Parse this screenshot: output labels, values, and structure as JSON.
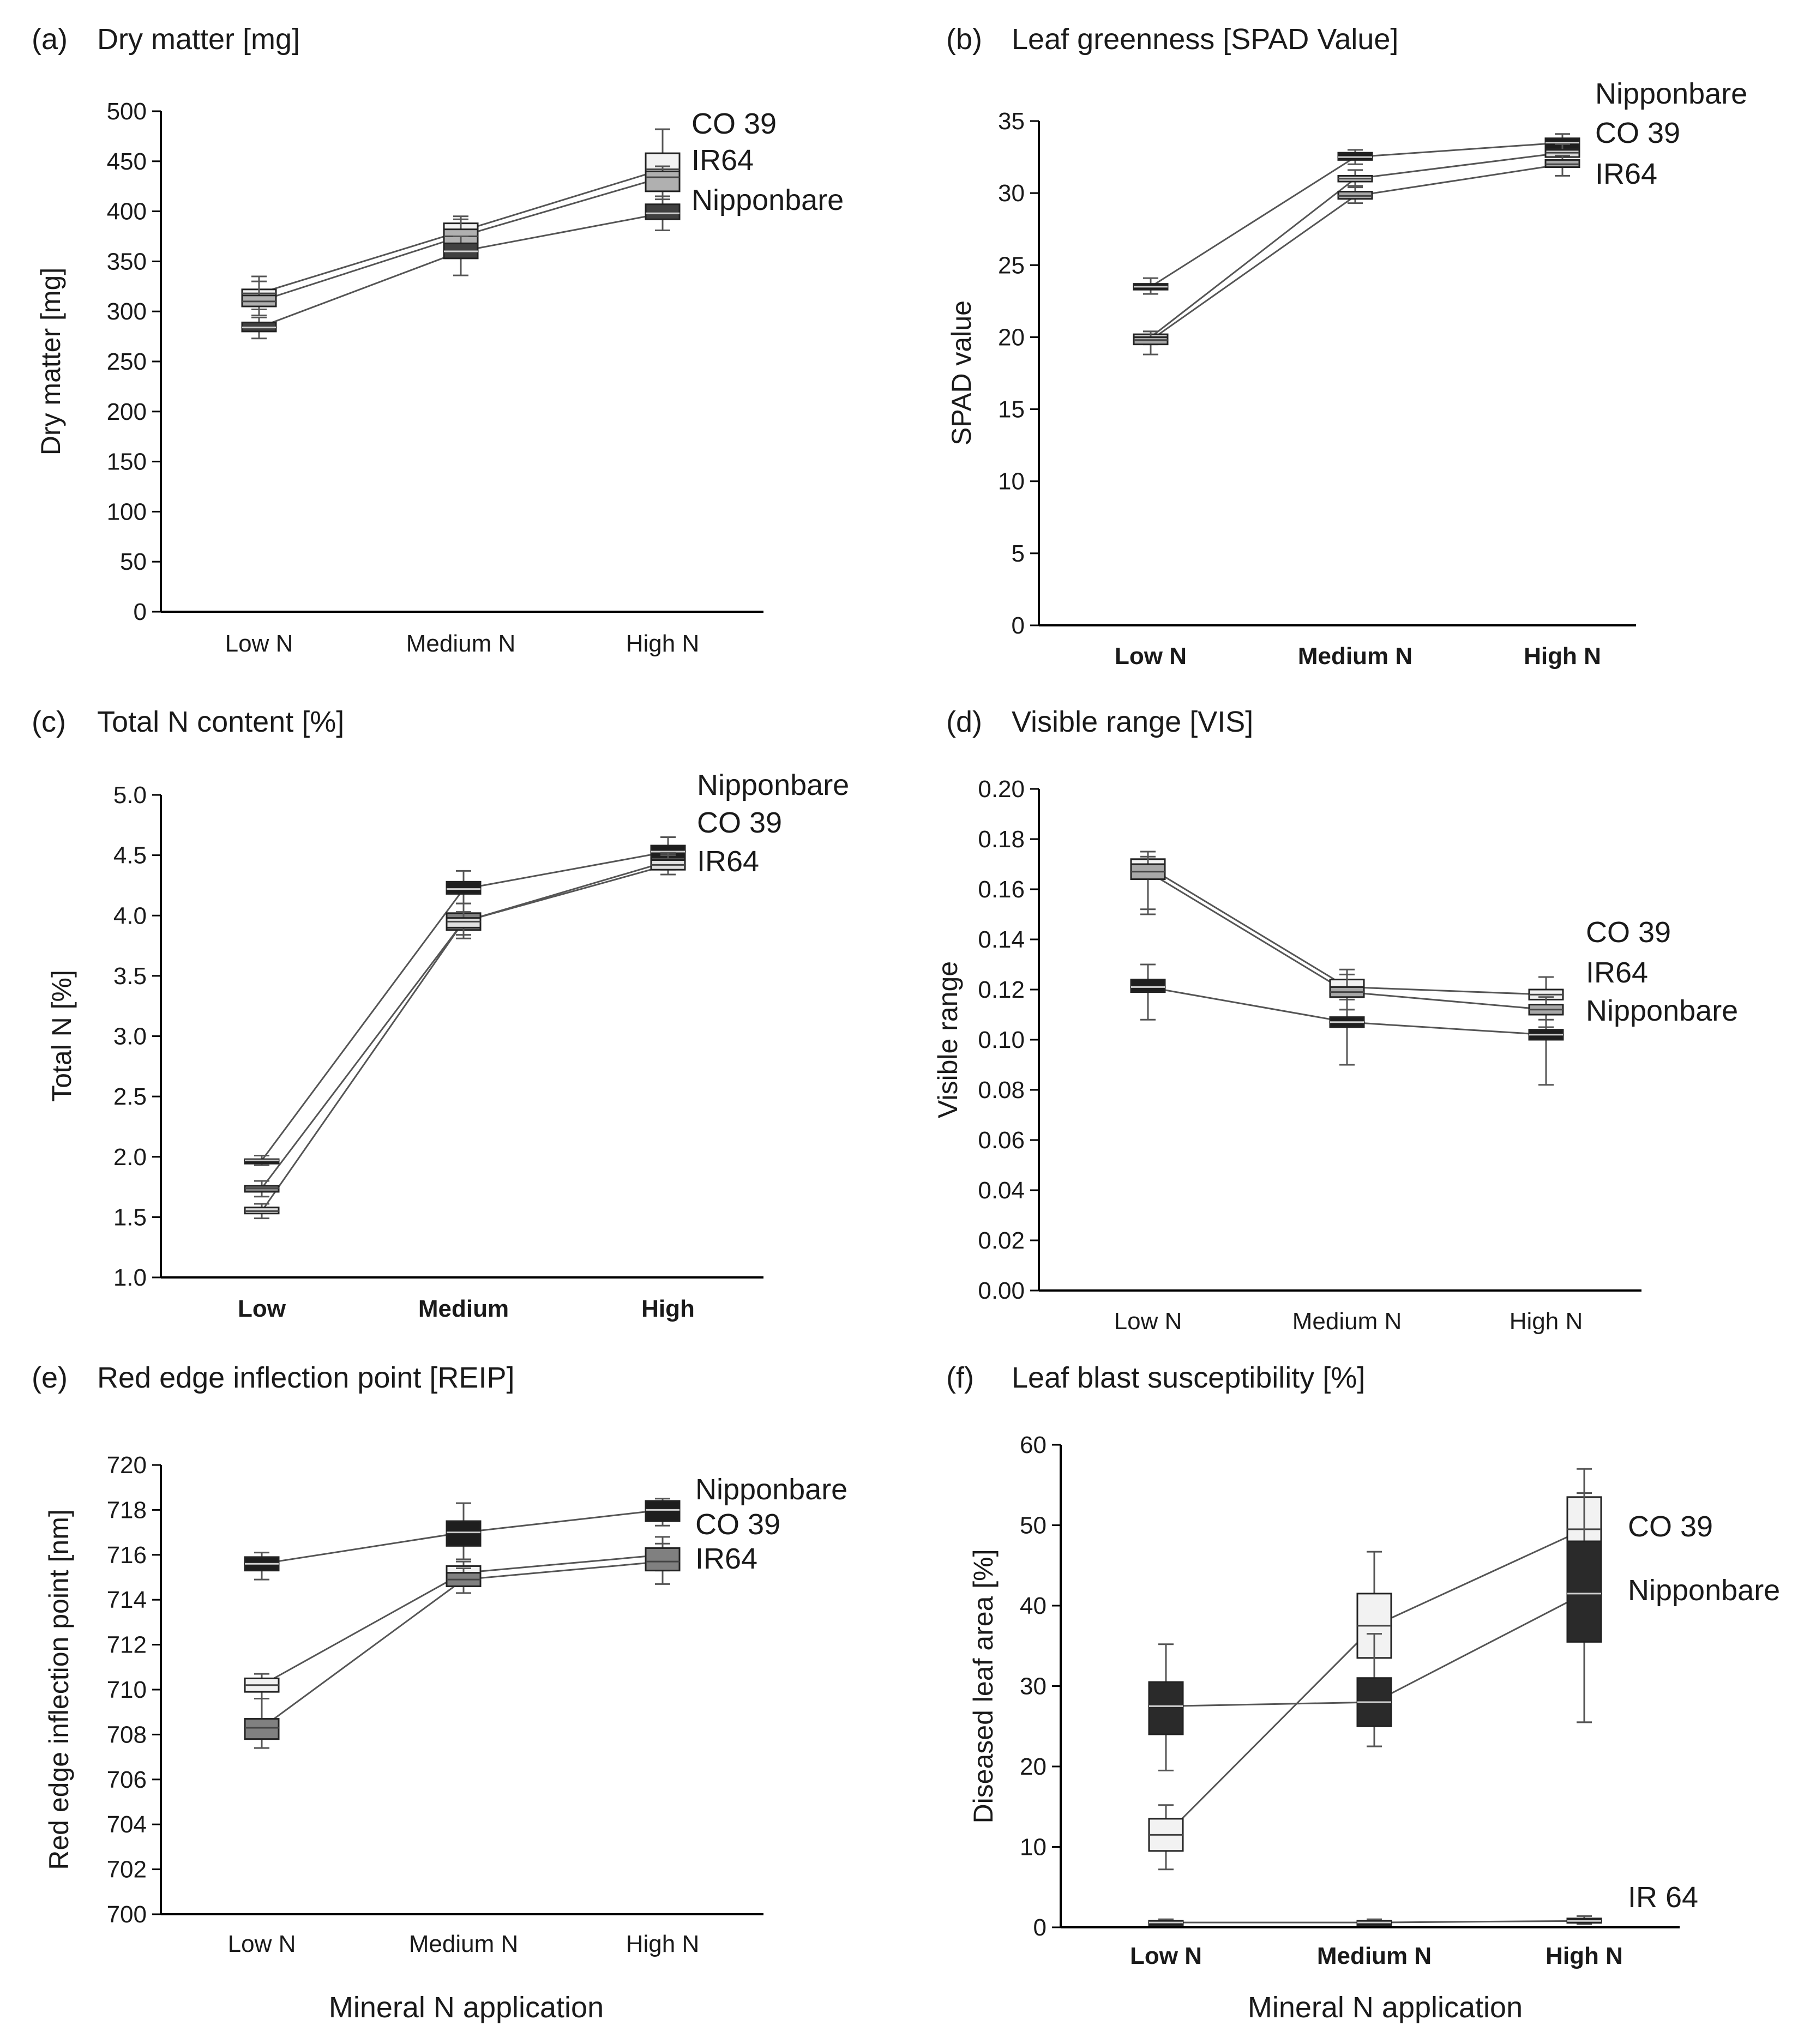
{
  "figure": {
    "x_axis_title": "Mineral N application"
  },
  "chart_data": [
    {
      "type": "box",
      "panel": "(a)",
      "title": "Dry matter [mg]",
      "ylabel": "Dry matter [mg]",
      "ylim": [
        0,
        500
      ],
      "yticks": [
        0,
        50,
        100,
        150,
        200,
        250,
        300,
        350,
        400,
        450,
        500
      ],
      "ytick_labels": [
        "0",
        "50",
        "100",
        "150",
        "200",
        "250",
        "300",
        "350",
        "400",
        "450",
        "500"
      ],
      "categories": [
        "Low N",
        "Medium N",
        "High N"
      ],
      "bold_categories": false,
      "series": [
        {
          "name": "CO 39",
          "color": "#f2f2f2",
          "box": [
            [
              310,
              322
            ],
            [
              370,
              388
            ],
            [
              425,
              458
            ]
          ],
          "median": [
            318,
            380,
            442
          ],
          "whisker": [
            [
              302,
              335
            ],
            [
              362,
              395
            ],
            [
              415,
              482
            ]
          ]
        },
        {
          "name": "IR64",
          "color": "#b0b0b0",
          "box": [
            [
              305,
              316
            ],
            [
              366,
              382
            ],
            [
              420,
              440
            ]
          ],
          "median": [
            310,
            375,
            434
          ],
          "whisker": [
            [
              296,
              330
            ],
            [
              355,
              392
            ],
            [
              412,
              445
            ]
          ]
        },
        {
          "name": "Nipponbare",
          "color": "#404040",
          "box": [
            [
              280,
              289
            ],
            [
              353,
              368
            ],
            [
              392,
              407
            ]
          ],
          "median": [
            284,
            360,
            398
          ],
          "whisker": [
            [
              273,
              294
            ],
            [
              336,
              375
            ],
            [
              381,
              415
            ]
          ]
        }
      ],
      "labels": [
        "CO 39",
        "IR64",
        "Nipponbare"
      ]
    },
    {
      "type": "box",
      "panel": "(b)",
      "title": "Leaf greenness [SPAD Value]",
      "ylabel": "SPAD value",
      "ylim": [
        0,
        35
      ],
      "yticks": [
        0,
        5,
        10,
        15,
        20,
        25,
        30,
        35
      ],
      "ytick_labels": [
        "0",
        "5",
        "10",
        "15",
        "20",
        "25",
        "30",
        "35"
      ],
      "categories": [
        "Low N",
        "Medium N",
        "High N"
      ],
      "bold_categories": true,
      "series": [
        {
          "name": "Nipponbare",
          "color": "#1e1e1e",
          "box": [
            [
              23.3,
              23.7
            ],
            [
              32.3,
              32.8
            ],
            [
              33.1,
              33.8
            ]
          ],
          "median": [
            23.5,
            32.5,
            33.5
          ],
          "whisker": [
            [
              23.0,
              24.1
            ],
            [
              32.0,
              33.0
            ],
            [
              32.8,
              34.1
            ]
          ]
        },
        {
          "name": "CO 39",
          "color": "#d9d9d9",
          "box": [
            [
              19.8,
              20.2
            ],
            [
              30.8,
              31.2
            ],
            [
              32.5,
              33.0
            ]
          ],
          "median": [
            20.0,
            31.0,
            32.8
          ],
          "whisker": [
            [
              19.5,
              20.4
            ],
            [
              30.5,
              31.6
            ],
            [
              32.2,
              33.4
            ]
          ]
        },
        {
          "name": "IR64",
          "color": "#a8a8a8",
          "box": [
            [
              19.5,
              20.0
            ],
            [
              29.6,
              30.1
            ],
            [
              31.8,
              32.3
            ]
          ],
          "median": [
            19.8,
            29.8,
            32.0
          ],
          "whisker": [
            [
              18.8,
              20.4
            ],
            [
              29.3,
              30.4
            ],
            [
              31.2,
              32.6
            ]
          ]
        }
      ],
      "labels": [
        "Nipponbare",
        "CO 39",
        "IR64"
      ]
    },
    {
      "type": "box",
      "panel": "(c)",
      "title": "Total N content [%]",
      "ylabel": "Total N [%]",
      "ylim": [
        1.0,
        5.0
      ],
      "yticks": [
        1.0,
        1.5,
        2.0,
        2.5,
        3.0,
        3.5,
        4.0,
        4.5,
        5.0
      ],
      "ytick_labels": [
        "1.0",
        "1.5",
        "2.0",
        "2.5",
        "3.0",
        "3.5",
        "4.0",
        "4.5",
        "5.0"
      ],
      "categories": [
        "Low",
        "Medium",
        "High"
      ],
      "bold_categories": true,
      "series": [
        {
          "name": "Nipponbare",
          "color": "#1e1e1e",
          "box": [
            [
              1.95,
              1.98
            ],
            [
              4.18,
              4.28
            ],
            [
              4.48,
              4.58
            ]
          ],
          "median": [
            1.97,
            4.22,
            4.53
          ],
          "whisker": [
            [
              1.93,
              2.01
            ],
            [
              4.1,
              4.37
            ],
            [
              4.43,
              4.65
            ]
          ]
        },
        {
          "name": "CO 39",
          "color": "#808080",
          "box": [
            [
              1.71,
              1.76
            ],
            [
              3.88,
              4.02
            ],
            [
              4.42,
              4.48
            ]
          ],
          "median": [
            1.74,
            3.95,
            4.45
          ],
          "whisker": [
            [
              1.67,
              1.8
            ],
            [
              3.81,
              4.1
            ],
            [
              4.38,
              4.52
            ]
          ]
        },
        {
          "name": "IR64",
          "color": "#e0e0e0",
          "box": [
            [
              1.53,
              1.58
            ],
            [
              3.9,
              3.98
            ],
            [
              4.38,
              4.46
            ]
          ],
          "median": [
            1.55,
            3.95,
            4.42
          ],
          "whisker": [
            [
              1.49,
              1.61
            ],
            [
              3.84,
              4.03
            ],
            [
              4.34,
              4.5
            ]
          ]
        }
      ],
      "labels": [
        "Nipponbare",
        "CO 39",
        "IR64"
      ]
    },
    {
      "type": "box",
      "panel": "(d)",
      "title": "Visible range [VIS]",
      "ylabel": "Visible range",
      "ylim": [
        0,
        0.2
      ],
      "yticks": [
        0,
        0.02,
        0.04,
        0.06,
        0.08,
        0.1,
        0.12,
        0.14,
        0.16,
        0.18,
        0.2
      ],
      "ytick_labels": [
        "0.00",
        "0.02",
        "0.04",
        "0.06",
        "0.08",
        "0.10",
        "0.12",
        "0.14",
        "0.16",
        "0.18",
        "0.20"
      ],
      "categories": [
        "Low N",
        "Medium N",
        "High N"
      ],
      "bold_categories": false,
      "series": [
        {
          "name": "CO 39",
          "color": "#f2f2f2",
          "box": [
            [
              0.166,
              0.172
            ],
            [
              0.119,
              0.124
            ],
            [
              0.116,
              0.12
            ]
          ],
          "median": [
            0.169,
            0.121,
            0.118
          ],
          "whisker": [
            [
              0.152,
              0.175
            ],
            [
              0.116,
              0.128
            ],
            [
              0.11,
              0.125
            ]
          ]
        },
        {
          "name": "IR64",
          "color": "#a8a8a8",
          "box": [
            [
              0.164,
              0.17
            ],
            [
              0.117,
              0.121
            ],
            [
              0.11,
              0.114
            ]
          ],
          "median": [
            0.167,
            0.119,
            0.112
          ],
          "whisker": [
            [
              0.15,
              0.173
            ],
            [
              0.112,
              0.126
            ],
            [
              0.105,
              0.117
            ]
          ]
        },
        {
          "name": "Nipponbare",
          "color": "#1e1e1e",
          "box": [
            [
              0.119,
              0.124
            ],
            [
              0.105,
              0.109
            ],
            [
              0.1,
              0.104
            ]
          ],
          "median": [
            0.121,
            0.107,
            0.102
          ],
          "whisker": [
            [
              0.108,
              0.13
            ],
            [
              0.09,
              0.112
            ],
            [
              0.082,
              0.108
            ]
          ]
        }
      ],
      "labels": [
        "CO 39",
        "IR64",
        "Nipponbare"
      ]
    },
    {
      "type": "box",
      "panel": "(e)",
      "title": "Red edge inflection point [REIP]",
      "ylabel": "Red edge inflection point [nm]",
      "ylim": [
        700,
        720
      ],
      "yticks": [
        700,
        702,
        704,
        706,
        708,
        710,
        712,
        714,
        716,
        718,
        720
      ],
      "ytick_labels": [
        "700",
        "702",
        "704",
        "706",
        "708",
        "710",
        "712",
        "714",
        "716",
        "718",
        "720"
      ],
      "categories": [
        "Low N",
        "Medium N",
        "High N"
      ],
      "bold_categories": false,
      "series": [
        {
          "name": "Nipponbare",
          "color": "#1e1e1e",
          "box": [
            [
              715.3,
              715.9
            ],
            [
              716.4,
              717.5
            ],
            [
              717.5,
              718.4
            ]
          ],
          "median": [
            715.6,
            717.0,
            718.0
          ],
          "whisker": [
            [
              714.9,
              716.1
            ],
            [
              715.8,
              718.3
            ],
            [
              717.3,
              718.5
            ]
          ]
        },
        {
          "name": "CO 39",
          "color": "#f2f2f2",
          "box": [
            [
              709.9,
              710.5
            ],
            [
              714.9,
              715.5
            ],
            [
              715.7,
              716.3
            ]
          ],
          "median": [
            710.2,
            715.2,
            716.0
          ],
          "whisker": [
            [
              709.6,
              710.7
            ],
            [
              714.6,
              715.7
            ],
            [
              715.3,
              716.5
            ]
          ]
        },
        {
          "name": "IR64",
          "color": "#808080",
          "box": [
            [
              707.8,
              708.7
            ],
            [
              714.6,
              715.2
            ],
            [
              715.3,
              716.3
            ]
          ],
          "median": [
            708.3,
            714.9,
            715.7
          ],
          "whisker": [
            [
              707.4,
              709.6
            ],
            [
              714.3,
              715.4
            ],
            [
              714.7,
              716.8
            ]
          ]
        }
      ],
      "labels": [
        "Nipponbare",
        "CO 39",
        "IR64"
      ]
    },
    {
      "type": "box",
      "panel": "(f)",
      "title": "Leaf blast susceptibility [%]",
      "ylabel": "Diseased leaf area [%]",
      "ylim": [
        0,
        60
      ],
      "yticks": [
        0,
        10,
        20,
        30,
        40,
        50,
        60
      ],
      "ytick_labels": [
        "0",
        "10",
        "20",
        "30",
        "40",
        "50",
        "60"
      ],
      "categories": [
        "Low N",
        "Medium N",
        "High N"
      ],
      "bold_categories": true,
      "series": [
        {
          "name": "CO 39",
          "color": "#f2f2f2",
          "box": [
            [
              9.5,
              13.5
            ],
            [
              33.5,
              41.5
            ],
            [
              48.0,
              53.5
            ]
          ],
          "median": [
            11.5,
            37.5,
            49.5
          ],
          "whisker": [
            [
              7.2,
              15.2
            ],
            [
              22.5,
              46.7
            ],
            [
              25.5,
              57.0
            ]
          ]
        },
        {
          "name": "Nipponbare",
          "color": "#2a2a2a",
          "box": [
            [
              24.0,
              30.5
            ],
            [
              25.0,
              31.0
            ],
            [
              35.5,
              48.0
            ]
          ],
          "median": [
            27.5,
            28.0,
            41.5
          ],
          "whisker": [
            [
              19.5,
              35.2
            ],
            [
              22.5,
              36.5
            ],
            [
              25.5,
              54.0
            ]
          ]
        },
        {
          "name": "IR 64",
          "color": "#1e1e1e",
          "box": [
            [
              0.4,
              0.8
            ],
            [
              0.4,
              0.8
            ],
            [
              0.6,
              1.1
            ]
          ],
          "median": [
            0.6,
            0.6,
            0.8
          ],
          "whisker": [
            [
              0.3,
              1.0
            ],
            [
              0.3,
              1.0
            ],
            [
              0.4,
              1.4
            ]
          ]
        }
      ],
      "labels": [
        "CO 39",
        "Nipponbare",
        "IR 64"
      ]
    }
  ]
}
